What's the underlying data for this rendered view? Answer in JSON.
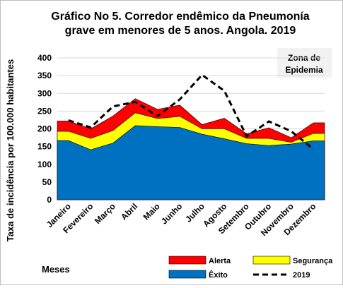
{
  "chart_data": {
    "type": "area",
    "title_line1": "Gráfico No 5. Corredor endêmico da Pneumonía",
    "title_line2": "grave em menores de 5 anos. Angola. 2019",
    "xlabel": "Meses",
    "ylabel": "Taxa de incidência por 100.000 habitantes",
    "ylim": [
      0,
      400
    ],
    "yticks": [
      "0",
      "50",
      "100",
      "150",
      "200",
      "250",
      "300",
      "350",
      "400"
    ],
    "categories": [
      "Janeiro",
      "Fevereiro",
      "Março",
      "Abril",
      "Maio",
      "Junho",
      "Julho",
      "Agosto",
      "Setembro",
      "Outubro",
      "Novembro",
      "Dezembro"
    ],
    "series": [
      {
        "name": "Êxito",
        "color": "#0070c0",
        "values": [
          167,
          141,
          160,
          209,
          206,
          204,
          185,
          172,
          158,
          153,
          157,
          166
        ]
      },
      {
        "name": "Segurança",
        "color": "#ffff00",
        "values": [
          193,
          173,
          195,
          245,
          229,
          235,
          200,
          200,
          173,
          173,
          162,
          187
        ]
      },
      {
        "name": "Alerta",
        "color": "#ff0000",
        "values": [
          222,
          200,
          236,
          285,
          255,
          267,
          212,
          230,
          186,
          203,
          175,
          217
        ]
      },
      {
        "name": "2019",
        "color": "#000000",
        "style": "dashed",
        "values": [
          224,
          204,
          263,
          276,
          236,
          283,
          352,
          307,
          179,
          221,
          193,
          143
        ]
      }
    ],
    "annotation_line1": "Zona de",
    "annotation_line2": "Epidemia",
    "legend_order": [
      "Alerta",
      "Segurança",
      "Êxito",
      "2019"
    ]
  }
}
